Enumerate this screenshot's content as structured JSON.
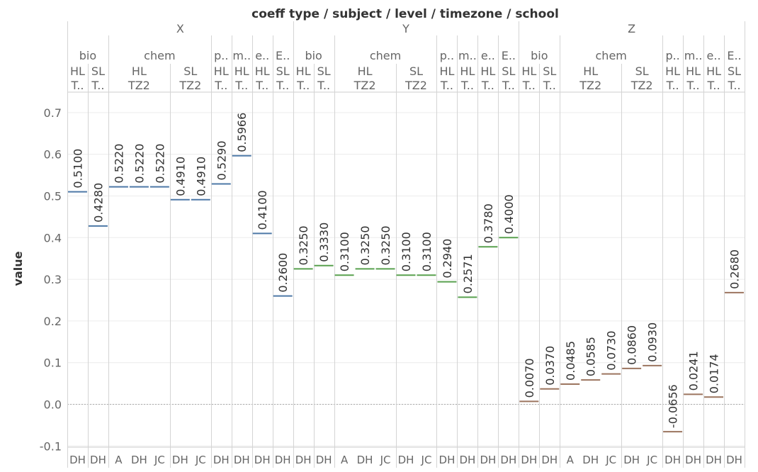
{
  "chart_data": {
    "type": "bar",
    "title": "coeff type / subject / level / timezone / school",
    "ylabel": "value",
    "ylim": [
      -0.11,
      0.74
    ],
    "yticks": [
      "0.7",
      "0.6",
      "0.5",
      "0.4",
      "0.3",
      "0.2",
      "0.1",
      "0.0",
      "-0.1"
    ],
    "ytick_values": [
      0.7,
      0.6,
      0.5,
      0.4,
      0.3,
      0.2,
      0.1,
      0.0,
      -0.1
    ],
    "grid": true,
    "colors": {
      "X": "#4e79a7",
      "Y": "#59a14f",
      "Z": "#9c755f"
    },
    "groups": [
      {
        "label": "X",
        "subjects": [
          {
            "label": "bio",
            "levels": [
              {
                "label": "HL",
                "tz": "T..",
                "schools": [
                  {
                    "label": "DH",
                    "value": 0.51,
                    "text": "0.5100"
                  }
                ]
              },
              {
                "label": "SL",
                "tz": "T..",
                "schools": [
                  {
                    "label": "DH",
                    "value": 0.428,
                    "text": "0.4280"
                  }
                ]
              }
            ]
          },
          {
            "label": "chem",
            "levels": [
              {
                "label": "HL",
                "tz": "TZ2",
                "schools": [
                  {
                    "label": "A",
                    "value": 0.522,
                    "text": "0.5220"
                  },
                  {
                    "label": "DH",
                    "value": 0.522,
                    "text": "0.5220"
                  },
                  {
                    "label": "JC",
                    "value": 0.522,
                    "text": "0.5220"
                  }
                ]
              },
              {
                "label": "SL",
                "tz": "TZ2",
                "schools": [
                  {
                    "label": "DH",
                    "value": 0.491,
                    "text": "0.4910"
                  },
                  {
                    "label": "JC",
                    "value": 0.491,
                    "text": "0.4910"
                  }
                ]
              }
            ]
          },
          {
            "label": "p..",
            "levels": [
              {
                "label": "HL",
                "tz": "T..",
                "schools": [
                  {
                    "label": "DH",
                    "value": 0.529,
                    "text": "0.5290"
                  }
                ]
              }
            ]
          },
          {
            "label": "m..",
            "levels": [
              {
                "label": "HL",
                "tz": "T..",
                "schools": [
                  {
                    "label": "DH",
                    "value": 0.5966,
                    "text": "0.5966"
                  }
                ]
              }
            ]
          },
          {
            "label": "e..",
            "levels": [
              {
                "label": "HL",
                "tz": "T..",
                "schools": [
                  {
                    "label": "DH",
                    "value": 0.41,
                    "text": "0.4100"
                  }
                ]
              }
            ]
          },
          {
            "label": "E..",
            "levels": [
              {
                "label": "SL",
                "tz": "T..",
                "schools": [
                  {
                    "label": "DH",
                    "value": 0.26,
                    "text": "0.2600"
                  }
                ]
              }
            ]
          }
        ]
      },
      {
        "label": "Y",
        "subjects": [
          {
            "label": "bio",
            "levels": [
              {
                "label": "HL",
                "tz": "T..",
                "schools": [
                  {
                    "label": "DH",
                    "value": 0.325,
                    "text": "0.3250"
                  }
                ]
              },
              {
                "label": "SL",
                "tz": "T..",
                "schools": [
                  {
                    "label": "DH",
                    "value": 0.333,
                    "text": "0.3330"
                  }
                ]
              }
            ]
          },
          {
            "label": "chem",
            "levels": [
              {
                "label": "HL",
                "tz": "TZ2",
                "schools": [
                  {
                    "label": "A",
                    "value": 0.31,
                    "text": "0.3100"
                  },
                  {
                    "label": "DH",
                    "value": 0.325,
                    "text": "0.3250"
                  },
                  {
                    "label": "JC",
                    "value": 0.325,
                    "text": "0.3250"
                  }
                ]
              },
              {
                "label": "SL",
                "tz": "TZ2",
                "schools": [
                  {
                    "label": "DH",
                    "value": 0.31,
                    "text": "0.3100"
                  },
                  {
                    "label": "JC",
                    "value": 0.31,
                    "text": "0.3100"
                  }
                ]
              }
            ]
          },
          {
            "label": "p..",
            "levels": [
              {
                "label": "HL",
                "tz": "T..",
                "schools": [
                  {
                    "label": "DH",
                    "value": 0.294,
                    "text": "0.2940"
                  }
                ]
              }
            ]
          },
          {
            "label": "m..",
            "levels": [
              {
                "label": "HL",
                "tz": "T..",
                "schools": [
                  {
                    "label": "DH",
                    "value": 0.2571,
                    "text": "0.2571"
                  }
                ]
              }
            ]
          },
          {
            "label": "e..",
            "levels": [
              {
                "label": "HL",
                "tz": "T..",
                "schools": [
                  {
                    "label": "DH",
                    "value": 0.378,
                    "text": "0.3780"
                  }
                ]
              }
            ]
          },
          {
            "label": "E..",
            "levels": [
              {
                "label": "SL",
                "tz": "T..",
                "schools": [
                  {
                    "label": "DH",
                    "value": 0.4,
                    "text": "0.4000"
                  }
                ]
              }
            ]
          }
        ]
      },
      {
        "label": "Z",
        "subjects": [
          {
            "label": "bio",
            "levels": [
              {
                "label": "HL",
                "tz": "T..",
                "schools": [
                  {
                    "label": "DH",
                    "value": 0.007,
                    "text": "0.0070"
                  }
                ]
              },
              {
                "label": "SL",
                "tz": "T..",
                "schools": [
                  {
                    "label": "DH",
                    "value": 0.037,
                    "text": "0.0370"
                  }
                ]
              }
            ]
          },
          {
            "label": "chem",
            "levels": [
              {
                "label": "HL",
                "tz": "TZ2",
                "schools": [
                  {
                    "label": "A",
                    "value": 0.0485,
                    "text": "0.0485"
                  },
                  {
                    "label": "DH",
                    "value": 0.0585,
                    "text": "0.0585"
                  },
                  {
                    "label": "JC",
                    "value": 0.073,
                    "text": "0.0730"
                  }
                ]
              },
              {
                "label": "SL",
                "tz": "TZ2",
                "schools": [
                  {
                    "label": "DH",
                    "value": 0.086,
                    "text": "0.0860"
                  },
                  {
                    "label": "JC",
                    "value": 0.093,
                    "text": "0.0930"
                  }
                ]
              }
            ]
          },
          {
            "label": "p..",
            "levels": [
              {
                "label": "HL",
                "tz": "T..",
                "schools": [
                  {
                    "label": "DH",
                    "value": -0.0656,
                    "text": "-0.0656"
                  }
                ]
              }
            ]
          },
          {
            "label": "m..",
            "levels": [
              {
                "label": "HL",
                "tz": "T..",
                "schools": [
                  {
                    "label": "DH",
                    "value": 0.0241,
                    "text": "0.0241"
                  }
                ]
              }
            ]
          },
          {
            "label": "e..",
            "levels": [
              {
                "label": "HL",
                "tz": "T..",
                "schools": [
                  {
                    "label": "DH",
                    "value": 0.0174,
                    "text": "0.0174"
                  }
                ]
              }
            ]
          },
          {
            "label": "E..",
            "levels": [
              {
                "label": "SL",
                "tz": "T..",
                "schools": [
                  {
                    "label": "DH",
                    "value": 0.268,
                    "text": "0.2680"
                  }
                ]
              }
            ]
          }
        ]
      }
    ]
  }
}
